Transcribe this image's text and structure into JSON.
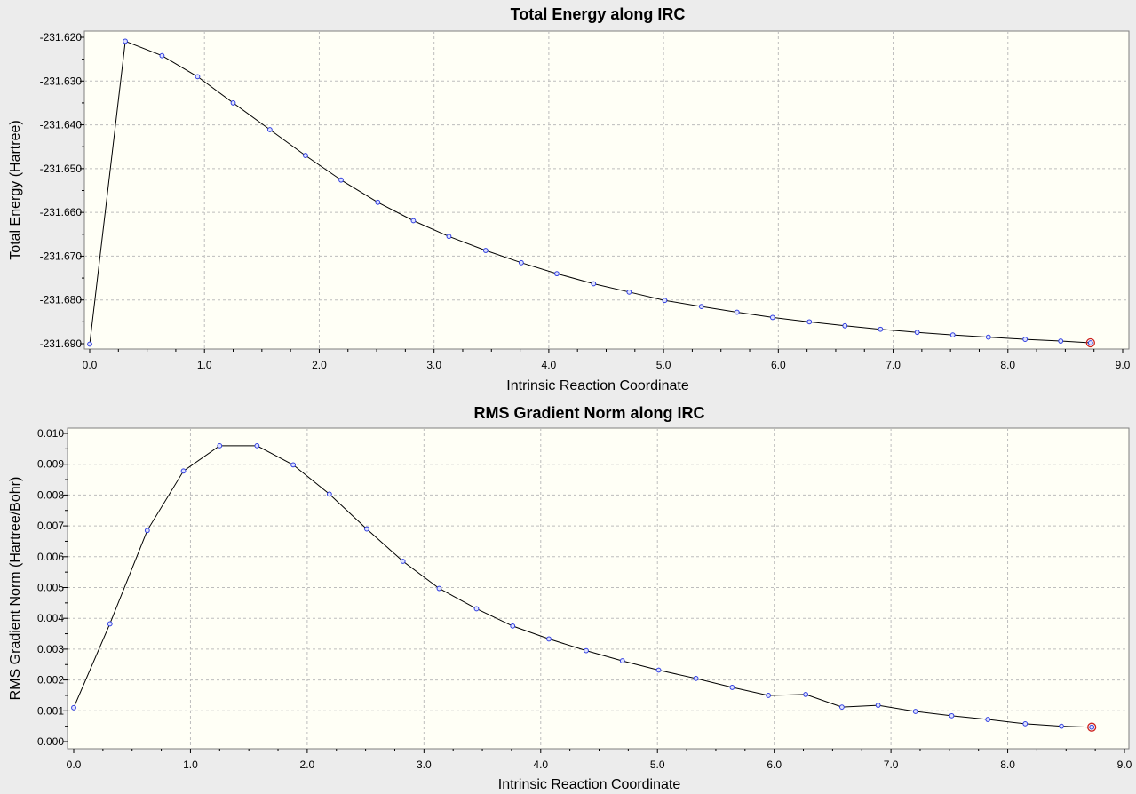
{
  "colors": {
    "background": "#ececec",
    "plot_bg": "#fffff6",
    "line": "#000000",
    "marker": "#2f3de0",
    "final_marker": "#cc2222",
    "grid": "#bdbdbd"
  },
  "chart_data": [
    {
      "type": "line",
      "title": "Total Energy along IRC",
      "xlabel": "Intrinsic Reaction Coordinate",
      "ylabel": "Total Energy (Hartree)",
      "xlim": [
        0.0,
        9.0
      ],
      "ylim": [
        -231.69,
        -231.62
      ],
      "grid": true,
      "x_ticks": [
        "0.0",
        "1.0",
        "2.0",
        "3.0",
        "4.0",
        "5.0",
        "6.0",
        "7.0",
        "8.0",
        "9.0"
      ],
      "y_ticks": [
        "-231.620",
        "-231.630",
        "-231.640",
        "-231.650",
        "-231.660",
        "-231.670",
        "-231.680",
        "-231.690"
      ],
      "x": [
        0.0,
        0.31,
        0.63,
        0.94,
        1.25,
        1.57,
        1.88,
        2.19,
        2.51,
        2.82,
        3.13,
        3.45,
        3.76,
        4.07,
        4.39,
        4.7,
        5.01,
        5.33,
        5.64,
        5.95,
        6.27,
        6.58,
        6.89,
        7.21,
        7.52,
        7.83,
        8.15,
        8.46,
        8.72
      ],
      "y": [
        -231.6901,
        -231.6209,
        -231.6242,
        -231.629,
        -231.635,
        -231.6411,
        -231.647,
        -231.6526,
        -231.6577,
        -231.6619,
        -231.6655,
        -231.6687,
        -231.6715,
        -231.674,
        -231.6763,
        -231.6782,
        -231.6801,
        -231.6815,
        -231.6828,
        -231.684,
        -231.685,
        -231.6859,
        -231.6867,
        -231.6874,
        -231.688,
        -231.6885,
        -231.689,
        -231.6894,
        -231.6898
      ]
    },
    {
      "type": "line",
      "title": "RMS Gradient Norm along IRC",
      "xlabel": "Intrinsic Reaction Coordinate",
      "ylabel": "RMS Gradient Norm (Hartree/Bohr)",
      "xlim": [
        0.0,
        9.0
      ],
      "ylim": [
        0.0,
        0.01
      ],
      "grid": true,
      "x_ticks": [
        "0.0",
        "1.0",
        "2.0",
        "3.0",
        "4.0",
        "5.0",
        "6.0",
        "7.0",
        "8.0",
        "9.0"
      ],
      "y_ticks": [
        "0.010",
        "0.009",
        "0.008",
        "0.007",
        "0.006",
        "0.005",
        "0.004",
        "0.003",
        "0.002",
        "0.001",
        "0.000"
      ],
      "x": [
        0.0,
        0.31,
        0.63,
        0.94,
        1.25,
        1.57,
        1.88,
        2.19,
        2.51,
        2.82,
        3.13,
        3.45,
        3.76,
        4.07,
        4.39,
        4.7,
        5.01,
        5.33,
        5.64,
        5.95,
        6.27,
        6.58,
        6.89,
        7.21,
        7.52,
        7.83,
        8.15,
        8.46,
        8.72
      ],
      "y": [
        0.0011,
        0.00382,
        0.00685,
        0.00878,
        0.0096,
        0.0096,
        0.00898,
        0.00803,
        0.0069,
        0.00585,
        0.00497,
        0.00431,
        0.00375,
        0.00333,
        0.00295,
        0.00262,
        0.00232,
        0.00205,
        0.00176,
        0.0015,
        0.00153,
        0.00112,
        0.00118,
        0.00098,
        0.00084,
        0.00072,
        0.00058,
        0.0005,
        0.00047
      ]
    }
  ]
}
